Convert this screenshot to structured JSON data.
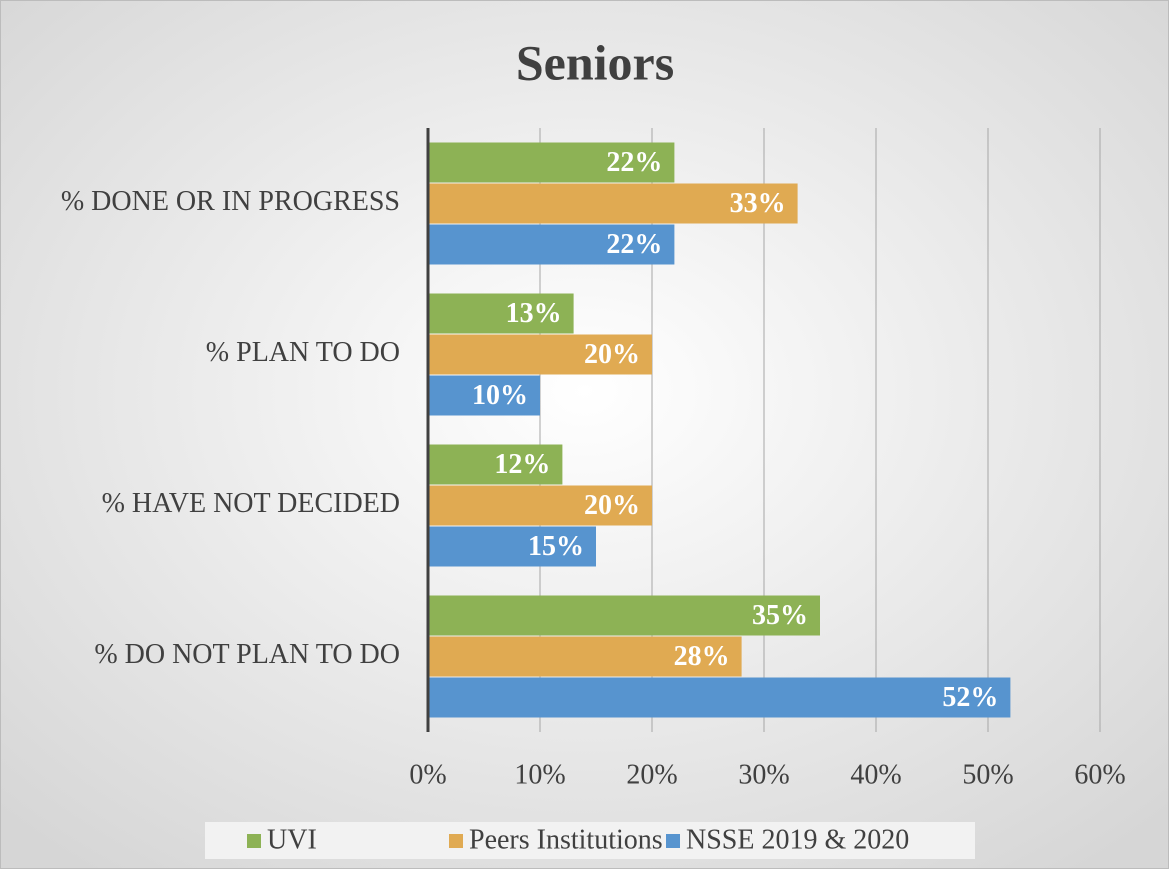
{
  "chart_data": {
    "type": "bar",
    "orientation": "horizontal",
    "title": "Seniors",
    "categories": [
      "% DONE OR IN PROGRESS",
      "% PLAN TO DO",
      "% HAVE NOT DECIDED",
      "% DO NOT PLAN TO DO"
    ],
    "series": [
      {
        "name": "UVI",
        "color": "#8db255",
        "values": [
          22,
          13,
          12,
          35
        ],
        "value_labels": [
          "22%",
          "13%",
          "12%",
          "35%"
        ]
      },
      {
        "name": "Peers Institutions",
        "color": "#e0aa52",
        "values": [
          33,
          20,
          20,
          28
        ],
        "value_labels": [
          "33%",
          "20%",
          "20%",
          "28%"
        ]
      },
      {
        "name": "NSSE 2019 & 2020",
        "color": "#5794cf",
        "values": [
          22,
          10,
          15,
          52
        ],
        "value_labels": [
          "22%",
          "10%",
          "15%",
          "52%"
        ]
      }
    ],
    "xlim": [
      0,
      60
    ],
    "xticks": [
      {
        "value": 0,
        "label": "0%"
      },
      {
        "value": 10,
        "label": "10%"
      },
      {
        "value": 20,
        "label": "20%"
      },
      {
        "value": 30,
        "label": "30%"
      },
      {
        "value": 40,
        "label": "40%"
      },
      {
        "value": 50,
        "label": "50%"
      },
      {
        "value": 60,
        "label": "60%"
      }
    ],
    "grid": true,
    "legend": "bottom"
  }
}
